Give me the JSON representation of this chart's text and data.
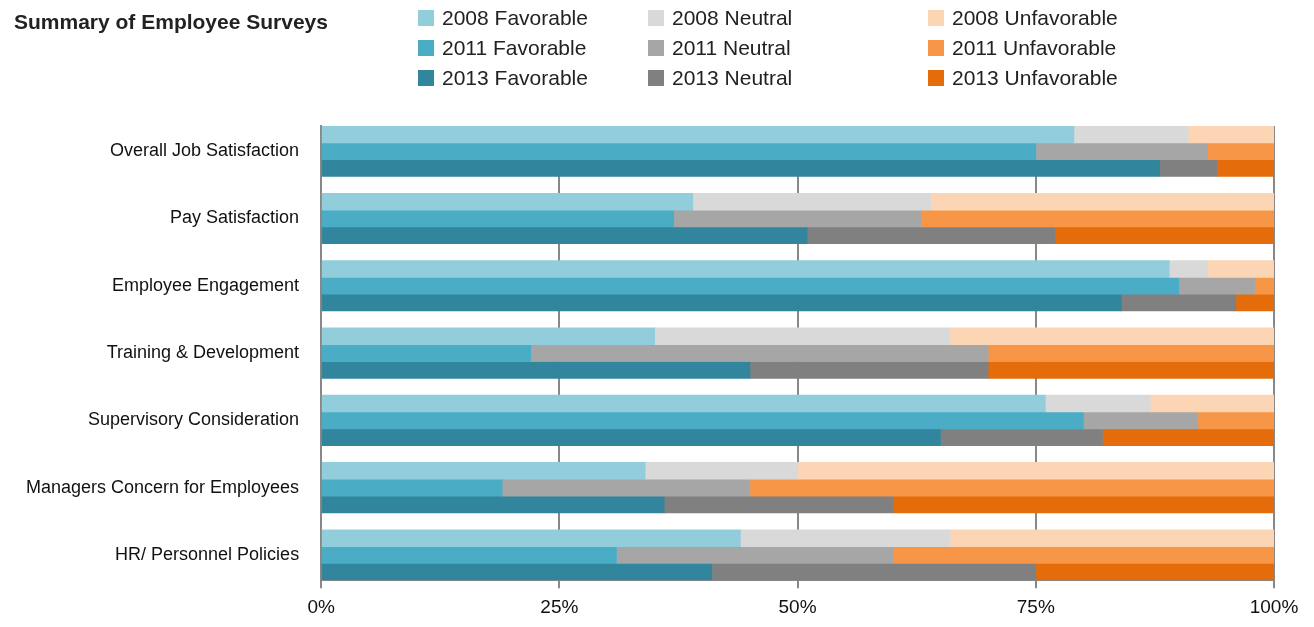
{
  "chart_data": {
    "type": "bar",
    "orientation": "horizontal",
    "stacked": true,
    "title": "Summary of Employee Surveys",
    "categories": [
      null,
      "Overall Job Satisfaction",
      null,
      null,
      null,
      "Pay Satisfaction",
      null,
      null,
      null,
      "Employee Engagement",
      null,
      null,
      null,
      "Training & Development",
      null,
      null,
      null,
      "Supervisory Consideration",
      null,
      null,
      null,
      "Managers Concern for Employees",
      null,
      null,
      null,
      "HR/ Personnel Policies",
      null
    ],
    "series": [
      {
        "name": "2008 Favorable",
        "color": "#92cddc",
        "values": [
          79,
          null,
          null,
          null,
          39,
          null,
          null,
          null,
          89,
          null,
          null,
          null,
          35,
          null,
          null,
          null,
          76,
          null,
          null,
          null,
          34,
          null,
          null,
          null,
          44,
          null,
          null
        ]
      },
      {
        "name": "2008 Neutral",
        "color": "#d9d9d9",
        "values": [
          12,
          null,
          null,
          null,
          25,
          null,
          null,
          null,
          4,
          null,
          null,
          null,
          31,
          null,
          null,
          null,
          11,
          null,
          null,
          null,
          16,
          null,
          null,
          null,
          22,
          null,
          null
        ]
      },
      {
        "name": "2008 Unfavorable",
        "color": "#fcd5b4",
        "values": [
          9,
          null,
          null,
          null,
          36,
          null,
          null,
          null,
          7,
          null,
          null,
          null,
          34,
          null,
          null,
          null,
          13,
          null,
          null,
          null,
          50,
          null,
          null,
          null,
          34,
          null,
          null
        ]
      },
      {
        "name": "2011 Favorable",
        "color": "#4bacc6",
        "values": [
          null,
          75,
          null,
          null,
          null,
          37,
          null,
          null,
          null,
          90,
          null,
          null,
          null,
          22,
          null,
          null,
          null,
          80,
          null,
          null,
          null,
          19,
          null,
          null,
          null,
          31,
          null
        ]
      },
      {
        "name": "2011 Neutral",
        "color": "#a6a6a6",
        "values": [
          null,
          18,
          null,
          null,
          null,
          26,
          null,
          null,
          null,
          8,
          null,
          null,
          null,
          48,
          null,
          null,
          null,
          12,
          null,
          null,
          null,
          26,
          null,
          null,
          null,
          29,
          null
        ]
      },
      {
        "name": "2011 Unfavorable",
        "color": "#f79646",
        "values": [
          null,
          7,
          null,
          null,
          null,
          37,
          null,
          null,
          null,
          2,
          null,
          null,
          null,
          30,
          null,
          null,
          null,
          8,
          null,
          null,
          null,
          55,
          null,
          null,
          null,
          40,
          null
        ]
      },
      {
        "name": "2013 Favorable",
        "color": "#31859c",
        "values": [
          null,
          null,
          88,
          null,
          null,
          null,
          51,
          null,
          null,
          null,
          84,
          null,
          null,
          null,
          45,
          null,
          null,
          null,
          65,
          null,
          null,
          null,
          36,
          null,
          null,
          null,
          41
        ]
      },
      {
        "name": "2013 Neutral",
        "color": "#808080",
        "values": [
          null,
          null,
          6,
          null,
          null,
          null,
          26,
          null,
          null,
          null,
          12,
          null,
          null,
          null,
          25,
          null,
          null,
          null,
          17,
          null,
          null,
          null,
          24,
          null,
          null,
          null,
          34
        ]
      },
      {
        "name": "2013 Unfavorable",
        "color": "#e46c0a",
        "values": [
          null,
          null,
          6,
          null,
          null,
          null,
          23,
          null,
          null,
          null,
          4,
          null,
          null,
          null,
          30,
          null,
          null,
          null,
          18,
          null,
          null,
          null,
          40,
          null,
          null,
          null,
          25
        ]
      }
    ],
    "xlim": [
      0,
      100
    ],
    "xticks": [
      {
        "value": 0,
        "label": "0%"
      },
      {
        "value": 25,
        "label": "25%"
      },
      {
        "value": 50,
        "label": "50%"
      },
      {
        "value": 75,
        "label": "75%"
      },
      {
        "value": 100,
        "label": "100%"
      }
    ],
    "grid": "x",
    "legend": "top"
  }
}
